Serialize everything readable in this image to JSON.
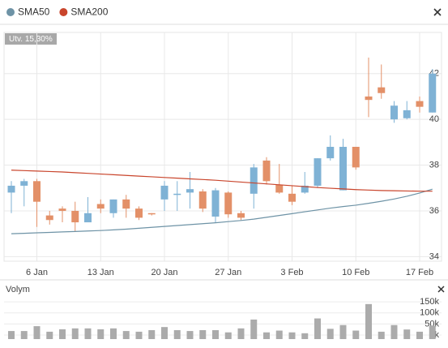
{
  "chart_data": [
    {
      "type": "candlestick",
      "annotation": "Utv. 15,30%",
      "categories": [
        null,
        null,
        "6 Jan",
        null,
        null,
        null,
        null,
        "13 Jan",
        null,
        null,
        null,
        null,
        "20 Jan",
        null,
        null,
        null,
        null,
        "27 Jan",
        null,
        null,
        null,
        null,
        "3 Feb",
        null,
        null,
        null,
        null,
        "10 Feb",
        null,
        null,
        null,
        null,
        "17 Feb",
        null
      ],
      "open": [
        36.8,
        37.1,
        37.3,
        35.8,
        36.1,
        36.0,
        35.5,
        36.3,
        35.9,
        36.5,
        36.1,
        35.9,
        36.5,
        36.7,
        36.8,
        36.85,
        35.75,
        36.8,
        35.9,
        36.75,
        38.2,
        37.15,
        36.75,
        36.8,
        37.1,
        38.3,
        36.9,
        38.8,
        41.0,
        41.4,
        40.0,
        40.05,
        40.8,
        40.3
      ],
      "high": [
        37.3,
        37.4,
        37.4,
        36.0,
        36.2,
        36.4,
        36.6,
        36.5,
        36.5,
        36.7,
        36.2,
        35.9,
        37.3,
        37.3,
        37.7,
        36.95,
        37.0,
        36.85,
        36.0,
        38.05,
        38.35,
        38.05,
        37.1,
        37.7,
        38.3,
        39.3,
        39.15,
        38.8,
        42.7,
        42.4,
        40.8,
        40.8,
        41.0,
        42.2
      ],
      "low": [
        35.9,
        36.2,
        35.3,
        35.4,
        35.5,
        35.1,
        35.5,
        35.9,
        35.7,
        35.7,
        35.6,
        35.8,
        36.0,
        36.0,
        36.1,
        35.95,
        35.5,
        35.7,
        35.6,
        36.1,
        37.15,
        36.75,
        36.25,
        36.75,
        37.0,
        38.2,
        36.9,
        37.8,
        40.1,
        40.9,
        39.85,
        40.0,
        40.3,
        40.3
      ],
      "close": [
        37.1,
        37.3,
        36.4,
        35.6,
        36.0,
        35.5,
        35.9,
        36.1,
        36.5,
        36.1,
        35.7,
        35.85,
        37.1,
        36.75,
        36.95,
        36.1,
        36.9,
        35.85,
        35.7,
        37.9,
        37.3,
        36.8,
        36.4,
        37.1,
        38.3,
        38.8,
        38.8,
        37.9,
        40.85,
        41.15,
        40.6,
        40.4,
        40.55,
        42.0
      ],
      "up_color": "#7fb2d5",
      "down_color": "#e39068",
      "series": [
        {
          "name": "SMA50",
          "color": "#6e93a6",
          "values": [
            35.0,
            35.02,
            35.04,
            35.06,
            35.08,
            35.1,
            35.12,
            35.14,
            35.17,
            35.2,
            35.24,
            35.28,
            35.32,
            35.36,
            35.4,
            35.44,
            35.48,
            35.53,
            35.58,
            35.64,
            35.72,
            35.8,
            35.88,
            35.96,
            36.04,
            36.12,
            36.19,
            36.25,
            36.33,
            36.42,
            36.52,
            36.64,
            36.78,
            36.95
          ]
        },
        {
          "name": "SMA200",
          "color": "#c9452c",
          "values": [
            37.78,
            37.76,
            37.74,
            37.72,
            37.7,
            37.67,
            37.64,
            37.61,
            37.58,
            37.55,
            37.52,
            37.49,
            37.46,
            37.43,
            37.4,
            37.37,
            37.34,
            37.3,
            37.26,
            37.22,
            37.18,
            37.14,
            37.1,
            37.06,
            37.02,
            36.99,
            36.96,
            36.93,
            36.91,
            36.89,
            36.88,
            36.87,
            36.86,
            36.86
          ]
        }
      ],
      "ylim": [
        33.8,
        43.8
      ],
      "yticks": [
        34,
        36,
        38,
        40,
        42
      ],
      "grid": true
    },
    {
      "type": "bar",
      "title": "Volym",
      "color": "#ababab",
      "values": [
        18000,
        18000,
        40000,
        15000,
        26000,
        30000,
        30000,
        26000,
        30000,
        18000,
        15000,
        22000,
        36000,
        22000,
        18000,
        22000,
        22000,
        12000,
        30000,
        70000,
        12000,
        20000,
        12000,
        8000,
        75000,
        28000,
        45000,
        20000,
        140000,
        15000,
        45000,
        25000,
        15000,
        42000
      ],
      "ylim": [
        0,
        165000
      ],
      "yticks": [
        {
          "value": 0,
          "label": "0k"
        },
        {
          "value": 50000,
          "label": "50k"
        },
        {
          "value": 100000,
          "label": "100k"
        },
        {
          "value": 150000,
          "label": "150k"
        }
      ]
    }
  ]
}
